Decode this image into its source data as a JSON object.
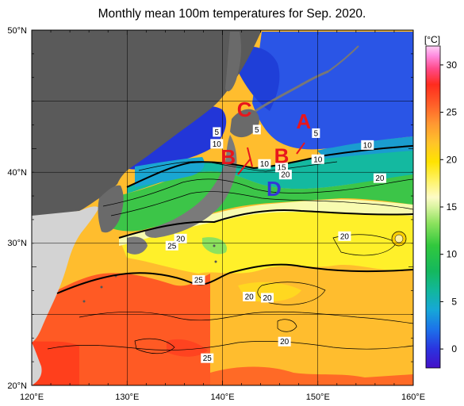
{
  "title": "Monthly mean 100m temperatures for Sep. 2020.",
  "axes": {
    "lon_labels": [
      "120°E",
      "130°E",
      "140°E",
      "150°E",
      "160°E"
    ],
    "lat_labels": [
      "50°N",
      "40°N",
      "30°N",
      "20°N"
    ]
  },
  "colorbar": {
    "unit": "[°C]",
    "ticks": [
      "30",
      "25",
      "20",
      "15",
      "10",
      "5",
      "0"
    ],
    "range": [
      -2,
      32
    ]
  },
  "contour_labels": [
    {
      "text": "5",
      "lon": 139.4,
      "lat": 41.4
    },
    {
      "text": "10",
      "lon": 139.4,
      "lat": 40.4
    },
    {
      "text": "5",
      "lon": 143.6,
      "lat": 41.6
    },
    {
      "text": "5",
      "lon": 149.8,
      "lat": 41.3
    },
    {
      "text": "10",
      "lon": 155.2,
      "lat": 40.3
    },
    {
      "text": "10",
      "lon": 150.0,
      "lat": 39.1
    },
    {
      "text": "10",
      "lon": 144.4,
      "lat": 38.7
    },
    {
      "text": "15",
      "lon": 146.2,
      "lat": 38.4
    },
    {
      "text": "20",
      "lon": 146.6,
      "lat": 37.8
    },
    {
      "text": "20",
      "lon": 156.5,
      "lat": 37.5
    },
    {
      "text": "20",
      "lon": 152.8,
      "lat": 32.6
    },
    {
      "text": "20",
      "lon": 135.6,
      "lat": 32.4
    },
    {
      "text": "25",
      "lon": 134.7,
      "lat": 31.8
    },
    {
      "text": "25",
      "lon": 137.5,
      "lat": 28.9
    },
    {
      "text": "20",
      "lon": 142.8,
      "lat": 27.5
    },
    {
      "text": "20",
      "lon": 144.7,
      "lat": 27.4
    },
    {
      "text": "20",
      "lon": 146.5,
      "lat": 23.7
    },
    {
      "text": "25",
      "lon": 138.4,
      "lat": 22.3
    }
  ],
  "markers": [
    {
      "text": "A",
      "lon": 148.5,
      "lat": 42.3,
      "color": "#e8161c"
    },
    {
      "text": "C",
      "lon": 142.3,
      "lat": 43.3,
      "color": "#e8161c"
    },
    {
      "text": "B",
      "lon": 140.6,
      "lat": 39.3,
      "color": "#e8161c"
    },
    {
      "text": "B",
      "lon": 146.2,
      "lat": 39.4,
      "color": "#e8161c"
    },
    {
      "text": "D",
      "lon": 145.4,
      "lat": 36.6,
      "color": "#3535d6"
    }
  ]
}
